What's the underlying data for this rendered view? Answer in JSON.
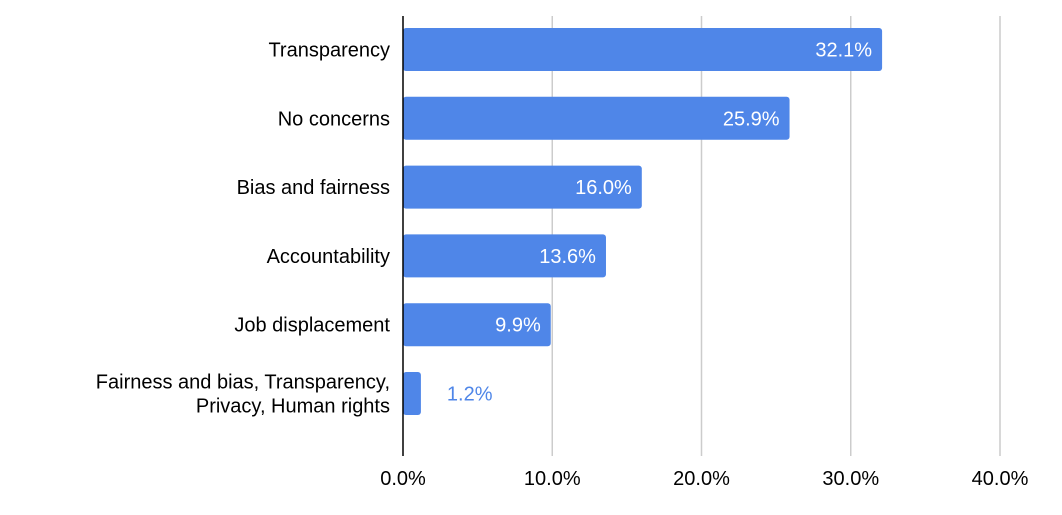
{
  "chart_data": {
    "type": "bar",
    "orientation": "horizontal",
    "categories": [
      "Transparency",
      "No concerns",
      "Bias and fairness",
      "Accountability",
      "Job displacement",
      "Fairness and bias, Transparency, Privacy, Human rights"
    ],
    "category_label_lines": [
      [
        "Transparency"
      ],
      [
        "No concerns"
      ],
      [
        "Bias and fairness"
      ],
      [
        "Accountability"
      ],
      [
        "Job displacement"
      ],
      [
        "Fairness and bias, Transparency,",
        "Privacy, Human rights"
      ]
    ],
    "values": [
      32.1,
      25.9,
      16.0,
      13.6,
      9.9,
      1.2
    ],
    "data_labels": [
      "32.1%",
      "25.9%",
      "16.0%",
      "13.6%",
      "9.9%",
      "1.2%"
    ],
    "title": "",
    "xlabel": "",
    "ylabel": "",
    "xlim": [
      0,
      40
    ],
    "x_ticks": [
      0,
      10,
      20,
      30,
      40
    ],
    "x_tick_labels": [
      "0.0%",
      "10.0%",
      "20.0%",
      "30.0%",
      "40.0%"
    ],
    "grid": true,
    "legend": "none",
    "colors": {
      "bar": "#4f86e8",
      "label_inside": "#ffffff",
      "label_outside": "#4f86e8",
      "grid": "#cccccc",
      "axis": "#000000",
      "text": "#000000"
    }
  }
}
